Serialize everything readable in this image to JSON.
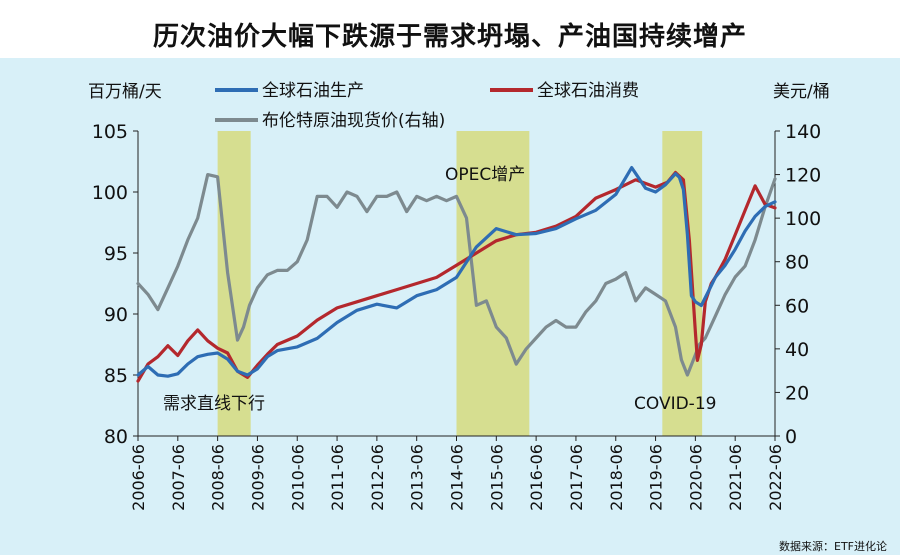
{
  "chart_data": {
    "type": "line",
    "title": "历次油价大幅下跌源于需求坍塌、产油国持续增产",
    "left_unit": "百万桶/天",
    "right_unit": "美元/桶",
    "left_ylim": [
      80,
      105
    ],
    "left_yticks": [
      "80",
      "85",
      "90",
      "95",
      "100",
      "105"
    ],
    "right_ylim": [
      0,
      140
    ],
    "right_yticks": [
      "0",
      "20",
      "40",
      "60",
      "80",
      "100",
      "120",
      "140"
    ],
    "x_ticks": [
      "2006-06",
      "2007-06",
      "2008-06",
      "2009-06",
      "2010-06",
      "2011-06",
      "2012-06",
      "2013-06",
      "2014-06",
      "2015-06",
      "2016-06",
      "2017-06",
      "2018-06",
      "2019-06",
      "2020-06",
      "2021-06",
      "2022-06"
    ],
    "x_range": [
      2006.5,
      2022.5
    ],
    "shaded_periods": [
      [
        2008.5,
        2009.33
      ],
      [
        2014.5,
        2016.33
      ],
      [
        2019.67,
        2020.67
      ]
    ],
    "annotations": [
      {
        "text": "需求直线下行",
        "x": 2006.7,
        "y": 82.5
      },
      {
        "text": "OPEC增产",
        "x": 2014.3,
        "y": 101.3
      },
      {
        "text": "COVID-19",
        "x": 2019.5,
        "y": 82.5
      }
    ],
    "legend": [
      "全球石油生产",
      "全球石油消费",
      "布伦特原油现货价(右轴)"
    ],
    "series": [
      {
        "name": "全球石油生产",
        "color": "#2e6db4",
        "axis": "left",
        "x": [
          2006.5,
          2006.75,
          2007.0,
          2007.25,
          2007.5,
          2007.75,
          2008.0,
          2008.25,
          2008.5,
          2008.75,
          2009.0,
          2009.25,
          2009.5,
          2009.75,
          2010.0,
          2010.5,
          2011.0,
          2011.5,
          2012.0,
          2012.5,
          2013.0,
          2013.5,
          2014.0,
          2014.5,
          2015.0,
          2015.5,
          2016.0,
          2016.5,
          2017.0,
          2017.5,
          2018.0,
          2018.5,
          2018.9,
          2019.25,
          2019.5,
          2019.75,
          2020.0,
          2020.1,
          2020.2,
          2020.3,
          2020.4,
          2020.5,
          2020.65,
          2020.85,
          2021.0,
          2021.25,
          2021.5,
          2021.75,
          2022.0,
          2022.25,
          2022.5
        ],
        "y": [
          85.0,
          85.7,
          85.0,
          84.9,
          85.1,
          85.9,
          86.5,
          86.7,
          86.8,
          86.3,
          85.3,
          85.0,
          85.5,
          86.5,
          87.0,
          87.3,
          88.0,
          89.3,
          90.3,
          90.8,
          90.5,
          91.5,
          92.0,
          93.0,
          95.5,
          97.0,
          96.5,
          96.6,
          97.0,
          97.8,
          98.5,
          99.8,
          102.0,
          100.3,
          100.0,
          100.6,
          101.5,
          101.2,
          100.2,
          96.5,
          91.5,
          91.0,
          90.7,
          92.0,
          93.0,
          94.0,
          95.3,
          96.8,
          98.0,
          98.8,
          99.2
        ]
      },
      {
        "name": "全球石油消费",
        "color": "#b4282d",
        "axis": "left",
        "x": [
          2006.5,
          2006.75,
          2007.0,
          2007.25,
          2007.5,
          2007.75,
          2008.0,
          2008.25,
          2008.5,
          2008.75,
          2009.0,
          2009.25,
          2009.5,
          2009.75,
          2010.0,
          2010.5,
          2011.0,
          2011.5,
          2012.0,
          2012.5,
          2013.0,
          2013.5,
          2014.0,
          2014.5,
          2015.0,
          2015.5,
          2016.0,
          2016.5,
          2017.0,
          2017.5,
          2018.0,
          2018.5,
          2019.0,
          2019.5,
          2019.8,
          2020.0,
          2020.2,
          2020.35,
          2020.5,
          2020.55,
          2020.65,
          2020.75,
          2020.9,
          2021.0,
          2021.25,
          2021.5,
          2021.75,
          2022.0,
          2022.25,
          2022.5
        ],
        "y": [
          84.5,
          85.9,
          86.5,
          87.4,
          86.6,
          87.8,
          88.7,
          87.8,
          87.2,
          86.8,
          85.3,
          84.8,
          85.8,
          86.7,
          87.5,
          88.2,
          89.5,
          90.5,
          91.0,
          91.5,
          92.0,
          92.5,
          93.0,
          94.0,
          95.0,
          96.0,
          96.5,
          96.7,
          97.2,
          98.0,
          99.5,
          100.2,
          101.0,
          100.4,
          100.8,
          101.6,
          101.0,
          96.0,
          88.5,
          86.2,
          87.5,
          91.0,
          92.5,
          93.0,
          94.5,
          96.5,
          98.5,
          100.5,
          99.0,
          98.7
        ]
      },
      {
        "name": "布伦特原油现货价(右轴)",
        "color": "#7d8a8f",
        "axis": "right",
        "x": [
          2006.5,
          2006.75,
          2007.0,
          2007.25,
          2007.5,
          2007.75,
          2008.0,
          2008.25,
          2008.5,
          2008.75,
          2009.0,
          2009.15,
          2009.3,
          2009.5,
          2009.75,
          2010.0,
          2010.25,
          2010.5,
          2010.75,
          2011.0,
          2011.25,
          2011.5,
          2011.75,
          2012.0,
          2012.25,
          2012.5,
          2012.75,
          2013.0,
          2013.25,
          2013.5,
          2013.75,
          2014.0,
          2014.25,
          2014.5,
          2014.75,
          2015.0,
          2015.25,
          2015.5,
          2015.75,
          2016.0,
          2016.25,
          2016.5,
          2016.75,
          2017.0,
          2017.25,
          2017.5,
          2017.75,
          2018.0,
          2018.25,
          2018.5,
          2018.75,
          2019.0,
          2019.25,
          2019.5,
          2019.75,
          2020.0,
          2020.15,
          2020.3,
          2020.45,
          2020.6,
          2020.75,
          2021.0,
          2021.25,
          2021.5,
          2021.75,
          2022.0,
          2022.25,
          2022.5
        ],
        "y": [
          70,
          65,
          58,
          68,
          78,
          90,
          100,
          120,
          119,
          75,
          44,
          50,
          60,
          68,
          74,
          76,
          76,
          80,
          90,
          110,
          110,
          105,
          112,
          110,
          103,
          110,
          110,
          112,
          103,
          110,
          108,
          110,
          108,
          110,
          100,
          60,
          62,
          50,
          45,
          33,
          40,
          45,
          50,
          53,
          50,
          50,
          57,
          62,
          70,
          72,
          75,
          62,
          68,
          65,
          62,
          50,
          35,
          28,
          35,
          42,
          45,
          55,
          65,
          73,
          78,
          90,
          105,
          118
        ]
      }
    ]
  },
  "footer_source": "数据来源：ETF进化论"
}
